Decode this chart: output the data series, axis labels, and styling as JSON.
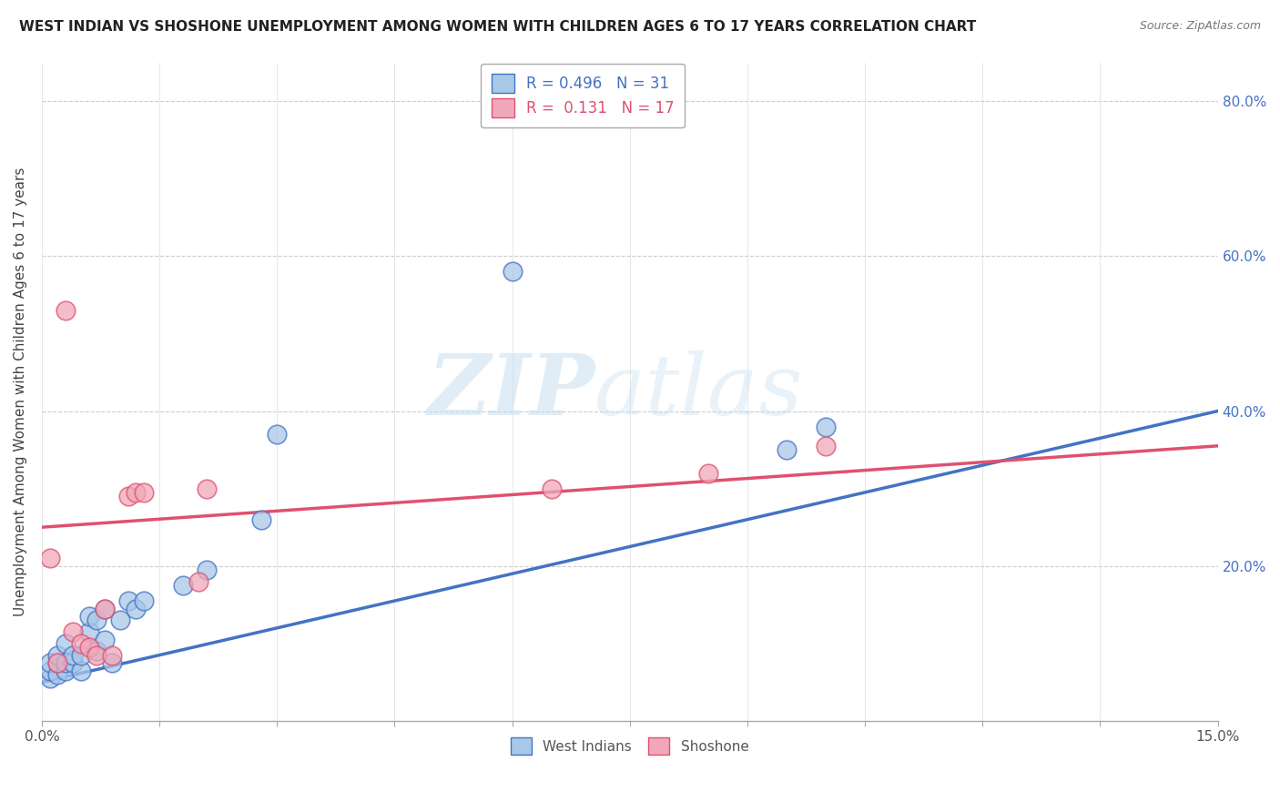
{
  "title": "WEST INDIAN VS SHOSHONE UNEMPLOYMENT AMONG WOMEN WITH CHILDREN AGES 6 TO 17 YEARS CORRELATION CHART",
  "source": "Source: ZipAtlas.com",
  "ylabel": "Unemployment Among Women with Children Ages 6 to 17 years",
  "xlim": [
    0.0,
    0.15
  ],
  "ylim": [
    0.0,
    0.85
  ],
  "xticks": [
    0.0,
    0.015,
    0.03,
    0.045,
    0.06,
    0.075,
    0.09,
    0.105,
    0.12,
    0.135,
    0.15
  ],
  "xtick_labels": [
    "0.0%",
    "",
    "",
    "",
    "",
    "",
    "",
    "",
    "",
    "",
    "15.0%"
  ],
  "ytick_labels": [
    "",
    "20.0%",
    "40.0%",
    "60.0%",
    "80.0%"
  ],
  "yticks": [
    0.0,
    0.2,
    0.4,
    0.6,
    0.8
  ],
  "background_color": "#ffffff",
  "grid_color": "#cccccc",
  "watermark_zip": "ZIP",
  "watermark_atlas": "atlas",
  "legend_R1": "R = 0.496",
  "legend_N1": "N = 31",
  "legend_R2": "R =  0.131",
  "legend_N2": "N = 17",
  "west_indian_color": "#a8c8e8",
  "shoshone_color": "#f0a8b8",
  "west_indian_line_color": "#4472c4",
  "shoshone_line_color": "#e05070",
  "west_indian_x": [
    0.001,
    0.001,
    0.001,
    0.002,
    0.002,
    0.002,
    0.003,
    0.003,
    0.003,
    0.004,
    0.004,
    0.005,
    0.005,
    0.006,
    0.006,
    0.007,
    0.007,
    0.008,
    0.008,
    0.009,
    0.01,
    0.011,
    0.012,
    0.013,
    0.018,
    0.021,
    0.028,
    0.03,
    0.06,
    0.095,
    0.1
  ],
  "west_indian_y": [
    0.055,
    0.065,
    0.075,
    0.06,
    0.075,
    0.085,
    0.065,
    0.075,
    0.1,
    0.075,
    0.085,
    0.065,
    0.085,
    0.115,
    0.135,
    0.09,
    0.13,
    0.105,
    0.145,
    0.075,
    0.13,
    0.155,
    0.145,
    0.155,
    0.175,
    0.195,
    0.26,
    0.37,
    0.58,
    0.35,
    0.38
  ],
  "shoshone_x": [
    0.001,
    0.002,
    0.003,
    0.004,
    0.005,
    0.006,
    0.007,
    0.008,
    0.009,
    0.011,
    0.012,
    0.013,
    0.02,
    0.021,
    0.065,
    0.085,
    0.1
  ],
  "shoshone_y": [
    0.21,
    0.075,
    0.53,
    0.115,
    0.1,
    0.095,
    0.085,
    0.145,
    0.085,
    0.29,
    0.295,
    0.295,
    0.18,
    0.3,
    0.3,
    0.32,
    0.355
  ],
  "west_indian_trend_x": [
    0.0,
    0.15
  ],
  "west_indian_trend_y": [
    0.05,
    0.4
  ],
  "shoshone_trend_x": [
    0.0,
    0.15
  ],
  "shoshone_trend_y": [
    0.25,
    0.355
  ]
}
